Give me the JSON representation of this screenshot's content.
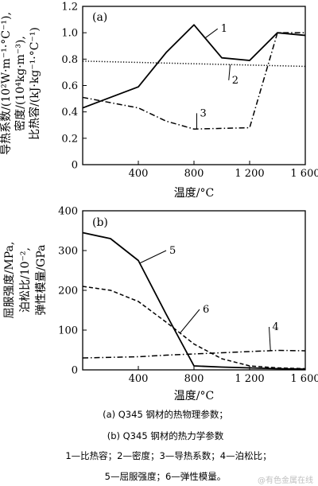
{
  "chart_data": [
    {
      "id": "a",
      "type": "line",
      "panel_label": "(a)",
      "xlabel": "温度/°C",
      "ylabel_lines": [
        "导热系数/(10²W·m⁻¹·°C⁻¹),",
        "密度/(10⁴kg·m⁻³),",
        "比热容/(kJ·kg⁻¹·°C⁻¹)"
      ],
      "xlim": [
        0,
        1600
      ],
      "ylim": [
        0,
        1.2
      ],
      "xticks": [
        400,
        800,
        1200,
        1600
      ],
      "xtick_labels": [
        "400",
        "800",
        "1 200",
        "1 600"
      ],
      "yticks": [
        0,
        0.2,
        0.4,
        0.6,
        0.8,
        1.0,
        1.2
      ],
      "ytick_labels": [
        "0",
        "0.2",
        "0.4",
        "0.6",
        "0.8",
        "1.0",
        "1.2"
      ],
      "grid": false,
      "series": [
        {
          "name": "1",
          "style": "solid",
          "x": [
            0,
            400,
            600,
            800,
            1000,
            1200,
            1400,
            1600
          ],
          "y": [
            0.43,
            0.59,
            0.85,
            1.06,
            0.81,
            0.79,
            1.0,
            0.98
          ],
          "callout_at": [
            970,
            1.03
          ]
        },
        {
          "name": "2",
          "style": "dotted",
          "x": [
            0,
            400,
            800,
            1200,
            1600
          ],
          "y": [
            0.785,
            0.775,
            0.765,
            0.755,
            0.745
          ],
          "callout_at": [
            1050,
            0.64
          ]
        },
        {
          "name": "3",
          "style": "dashdot",
          "x": [
            0,
            400,
            600,
            800,
            1000,
            1200,
            1400,
            1600
          ],
          "y": [
            0.51,
            0.43,
            0.33,
            0.27,
            0.275,
            0.28,
            1.0,
            1.0
          ],
          "callout_at": [
            820,
            0.39
          ]
        }
      ]
    },
    {
      "id": "b",
      "type": "line",
      "panel_label": "(b)",
      "xlabel": "温度/°C",
      "ylabel_lines": [
        "屈服强度/MPa,",
        "泊松比/10⁻²,",
        "弹性模量/GPa"
      ],
      "xlim": [
        0,
        1600
      ],
      "ylim": [
        0,
        400
      ],
      "xticks": [
        400,
        800,
        1200,
        1600
      ],
      "xtick_labels": [
        "400",
        "800",
        "1 200",
        "1 600"
      ],
      "yticks": [
        0,
        100,
        200,
        300,
        400
      ],
      "ytick_labels": [
        "0",
        "100",
        "200",
        "300",
        "400"
      ],
      "grid": false,
      "series": [
        {
          "name": "5",
          "style": "solid",
          "x": [
            0,
            200,
            400,
            600,
            800,
            1000,
            1200,
            1400,
            1600
          ],
          "y": [
            345,
            330,
            275,
            140,
            10,
            7,
            5,
            3,
            2
          ],
          "callout_at": [
            600,
            300
          ]
        },
        {
          "name": "6",
          "style": "dashed",
          "x": [
            0,
            200,
            400,
            600,
            800,
            1000,
            1200,
            1400,
            1600
          ],
          "y": [
            210,
            200,
            172,
            120,
            65,
            28,
            10,
            5,
            3
          ],
          "callout_at": [
            840,
            152
          ]
        },
        {
          "name": "4",
          "style": "dashdot",
          "x": [
            0,
            400,
            600,
            800,
            1000,
            1200,
            1400,
            1600
          ],
          "y": [
            30,
            33,
            37,
            40,
            43,
            46,
            49,
            48
          ],
          "callout_at": [
            1340,
            108
          ]
        }
      ]
    }
  ],
  "captions": [
    "(a) Q345 钢材的热物理参数；",
    "(b) Q345 钢材的热力学参数",
    "1—比热容；2—密度；3—导热系数；4—泊松比；",
    "5—屈服强度；6—弹性模量。"
  ],
  "watermark": "@有色金属在线"
}
